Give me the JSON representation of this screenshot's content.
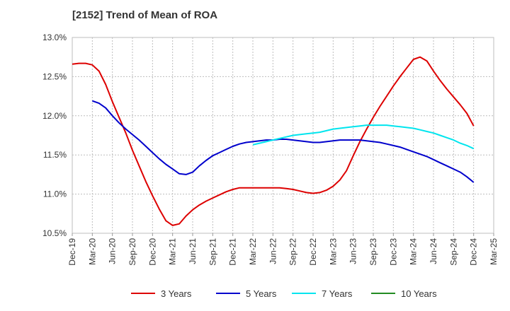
{
  "title": "[2152]  Trend of Mean of ROA",
  "chart_data": {
    "type": "line",
    "title": "[2152]  Trend of Mean of ROA",
    "xlabel": "",
    "ylabel": "",
    "ylim": [
      10.5,
      13.0
    ],
    "grid": true,
    "legend_position": "bottom",
    "y_ticks": [
      "13.0%",
      "12.5%",
      "12.0%",
      "11.5%",
      "11.0%",
      "10.5%"
    ],
    "x_ticks": [
      "Dec-19",
      "Mar-20",
      "Jun-20",
      "Sep-20",
      "Dec-20",
      "Mar-21",
      "Jun-21",
      "Sep-21",
      "Dec-21",
      "Mar-22",
      "Jun-22",
      "Sep-22",
      "Dec-22",
      "Mar-23",
      "Jun-23",
      "Sep-23",
      "Dec-23",
      "Mar-24",
      "Jun-24",
      "Sep-24",
      "Dec-24",
      "Mar-25"
    ],
    "series": [
      {
        "name": "3 Years",
        "color": "#dd0000",
        "points": [
          [
            "Dec-19",
            12.66
          ],
          [
            "Jan-20",
            12.67
          ],
          [
            "Feb-20",
            12.67
          ],
          [
            "Mar-20",
            12.65
          ],
          [
            "Apr-20",
            12.57
          ],
          [
            "May-20",
            12.4
          ],
          [
            "Jun-20",
            12.18
          ],
          [
            "Jul-20",
            11.98
          ],
          [
            "Aug-20",
            11.78
          ],
          [
            "Sep-20",
            11.56
          ],
          [
            "Oct-20",
            11.36
          ],
          [
            "Nov-20",
            11.16
          ],
          [
            "Dec-20",
            10.98
          ],
          [
            "Jan-21",
            10.81
          ],
          [
            "Feb-21",
            10.66
          ],
          [
            "Mar-21",
            10.6
          ],
          [
            "Apr-21",
            10.62
          ],
          [
            "May-21",
            10.72
          ],
          [
            "Jun-21",
            10.8
          ],
          [
            "Jul-21",
            10.86
          ],
          [
            "Aug-21",
            10.91
          ],
          [
            "Sep-21",
            10.95
          ],
          [
            "Oct-21",
            10.99
          ],
          [
            "Nov-21",
            11.03
          ],
          [
            "Dec-21",
            11.06
          ],
          [
            "Jan-22",
            11.08
          ],
          [
            "Feb-22",
            11.08
          ],
          [
            "Mar-22",
            11.08
          ],
          [
            "Apr-22",
            11.08
          ],
          [
            "May-22",
            11.08
          ],
          [
            "Jun-22",
            11.08
          ],
          [
            "Jul-22",
            11.08
          ],
          [
            "Aug-22",
            11.07
          ],
          [
            "Sep-22",
            11.06
          ],
          [
            "Oct-22",
            11.04
          ],
          [
            "Nov-22",
            11.02
          ],
          [
            "Dec-22",
            11.01
          ],
          [
            "Jan-23",
            11.02
          ],
          [
            "Feb-23",
            11.05
          ],
          [
            "Mar-23",
            11.1
          ],
          [
            "Apr-23",
            11.18
          ],
          [
            "May-23",
            11.3
          ],
          [
            "Jun-23",
            11.49
          ],
          [
            "Jul-23",
            11.67
          ],
          [
            "Aug-23",
            11.83
          ],
          [
            "Sep-23",
            11.98
          ],
          [
            "Oct-23",
            12.12
          ],
          [
            "Nov-23",
            12.25
          ],
          [
            "Dec-23",
            12.38
          ],
          [
            "Jan-24",
            12.5
          ],
          [
            "Feb-24",
            12.61
          ],
          [
            "Mar-24",
            12.72
          ],
          [
            "Apr-24",
            12.75
          ],
          [
            "May-24",
            12.7
          ],
          [
            "Jun-24",
            12.57
          ],
          [
            "Jul-24",
            12.45
          ],
          [
            "Aug-24",
            12.34
          ],
          [
            "Sep-24",
            12.24
          ],
          [
            "Oct-24",
            12.14
          ],
          [
            "Nov-24",
            12.03
          ],
          [
            "Dec-24",
            11.87
          ]
        ]
      },
      {
        "name": "5 Years",
        "color": "#0000cc",
        "points": [
          [
            "Mar-20",
            12.19
          ],
          [
            "Apr-20",
            12.16
          ],
          [
            "May-20",
            12.1
          ],
          [
            "Jun-20",
            12.0
          ],
          [
            "Jul-20",
            11.91
          ],
          [
            "Aug-20",
            11.83
          ],
          [
            "Sep-20",
            11.76
          ],
          [
            "Oct-20",
            11.69
          ],
          [
            "Nov-20",
            11.61
          ],
          [
            "Dec-20",
            11.53
          ],
          [
            "Jan-21",
            11.45
          ],
          [
            "Feb-21",
            11.38
          ],
          [
            "Mar-21",
            11.32
          ],
          [
            "Apr-21",
            11.26
          ],
          [
            "May-21",
            11.25
          ],
          [
            "Jun-21",
            11.28
          ],
          [
            "Jul-21",
            11.36
          ],
          [
            "Aug-21",
            11.43
          ],
          [
            "Sep-21",
            11.49
          ],
          [
            "Oct-21",
            11.53
          ],
          [
            "Nov-21",
            11.57
          ],
          [
            "Dec-21",
            11.61
          ],
          [
            "Jan-22",
            11.64
          ],
          [
            "Feb-22",
            11.66
          ],
          [
            "Mar-22",
            11.67
          ],
          [
            "Apr-22",
            11.68
          ],
          [
            "May-22",
            11.69
          ],
          [
            "Jun-22",
            11.69
          ],
          [
            "Jul-22",
            11.7
          ],
          [
            "Aug-22",
            11.7
          ],
          [
            "Sep-22",
            11.69
          ],
          [
            "Oct-22",
            11.68
          ],
          [
            "Nov-22",
            11.67
          ],
          [
            "Dec-22",
            11.66
          ],
          [
            "Jan-23",
            11.66
          ],
          [
            "Feb-23",
            11.67
          ],
          [
            "Mar-23",
            11.68
          ],
          [
            "Apr-23",
            11.69
          ],
          [
            "May-23",
            11.69
          ],
          [
            "Jun-23",
            11.69
          ],
          [
            "Jul-23",
            11.69
          ],
          [
            "Aug-23",
            11.68
          ],
          [
            "Sep-23",
            11.67
          ],
          [
            "Oct-23",
            11.66
          ],
          [
            "Nov-23",
            11.64
          ],
          [
            "Dec-23",
            11.62
          ],
          [
            "Jan-24",
            11.6
          ],
          [
            "Feb-24",
            11.57
          ],
          [
            "Mar-24",
            11.54
          ],
          [
            "Apr-24",
            11.51
          ],
          [
            "May-24",
            11.48
          ],
          [
            "Jun-24",
            11.44
          ],
          [
            "Jul-24",
            11.4
          ],
          [
            "Aug-24",
            11.36
          ],
          [
            "Sep-24",
            11.32
          ],
          [
            "Oct-24",
            11.28
          ],
          [
            "Nov-24",
            11.22
          ],
          [
            "Dec-24",
            11.15
          ]
        ]
      },
      {
        "name": "7 Years",
        "color": "#00e5ee",
        "points": [
          [
            "Mar-22",
            11.63
          ],
          [
            "Apr-22",
            11.65
          ],
          [
            "May-22",
            11.67
          ],
          [
            "Jun-22",
            11.69
          ],
          [
            "Jul-22",
            11.71
          ],
          [
            "Aug-22",
            11.73
          ],
          [
            "Sep-22",
            11.75
          ],
          [
            "Oct-22",
            11.76
          ],
          [
            "Nov-22",
            11.77
          ],
          [
            "Dec-22",
            11.78
          ],
          [
            "Jan-23",
            11.79
          ],
          [
            "Feb-23",
            11.81
          ],
          [
            "Mar-23",
            11.83
          ],
          [
            "Apr-23",
            11.84
          ],
          [
            "May-23",
            11.85
          ],
          [
            "Jun-23",
            11.86
          ],
          [
            "Jul-23",
            11.87
          ],
          [
            "Aug-23",
            11.88
          ],
          [
            "Sep-23",
            11.88
          ],
          [
            "Oct-23",
            11.88
          ],
          [
            "Nov-23",
            11.88
          ],
          [
            "Dec-23",
            11.87
          ],
          [
            "Jan-24",
            11.86
          ],
          [
            "Feb-24",
            11.85
          ],
          [
            "Mar-24",
            11.84
          ],
          [
            "Apr-24",
            11.82
          ],
          [
            "May-24",
            11.8
          ],
          [
            "Jun-24",
            11.78
          ],
          [
            "Jul-24",
            11.75
          ],
          [
            "Aug-24",
            11.72
          ],
          [
            "Sep-24",
            11.69
          ],
          [
            "Oct-24",
            11.65
          ],
          [
            "Nov-24",
            11.62
          ],
          [
            "Dec-24",
            11.58
          ]
        ]
      },
      {
        "name": "10 Years",
        "color": "#228b22",
        "points": []
      }
    ]
  }
}
